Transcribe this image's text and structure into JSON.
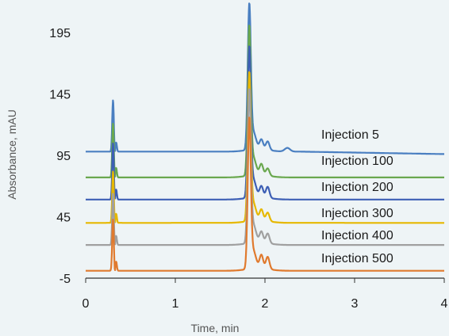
{
  "chart_data": {
    "type": "line",
    "title": "",
    "xlabel": "Time, min",
    "ylabel": "Absorbance, mAU",
    "xlim": [
      0,
      4
    ],
    "ylim": [
      -5,
      215
    ],
    "x_ticks": [
      "0",
      "1",
      "2",
      "3",
      "4"
    ],
    "y_ticks": [
      "-5",
      "45",
      "95",
      "145",
      "195"
    ],
    "y_tick_values": [
      -5,
      45,
      95,
      145,
      195
    ],
    "grid": false,
    "legend": "inline labels at right",
    "series": [
      {
        "name": "Injection 5",
        "color": "#4a7fc1",
        "baseline": 98,
        "peak1": 140,
        "peak2": 213,
        "peak3": 106,
        "peak3b": 105,
        "bump": 101
      },
      {
        "name": "Injection 100",
        "color": "#6aa84f",
        "baseline": 77,
        "peak1": 121,
        "peak2": 195,
        "peak3": 86,
        "peak3b": 83,
        "bump": 77
      },
      {
        "name": "Injection 200",
        "color": "#3d5fb5",
        "baseline": 59,
        "peak1": 105,
        "peak2": 178,
        "peak3": 68,
        "peak3b": 68,
        "bump": 59
      },
      {
        "name": "Injection 300",
        "color": "#e6b800",
        "baseline": 40,
        "peak1": 82,
        "peak2": 157,
        "peak3": 49,
        "peak3b": 47,
        "bump": 40
      },
      {
        "name": "Injection 400",
        "color": "#a0a0a0",
        "baseline": 22,
        "peak1": 64,
        "peak2": 143,
        "peak3": 31,
        "peak3b": 30,
        "bump": 22
      },
      {
        "name": "Injection 500",
        "color": "#e07a2e",
        "baseline": 1,
        "peak1": 43,
        "peak2": 120,
        "peak3": 12,
        "peak3b": 11,
        "bump": 1
      }
    ]
  }
}
